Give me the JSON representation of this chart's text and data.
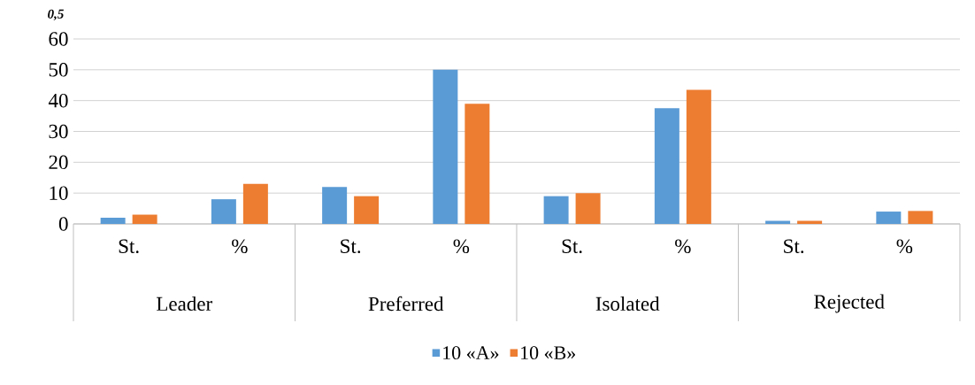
{
  "chart_data": {
    "type": "bar",
    "ylabel": "0,5",
    "categories": [
      "St.",
      "%",
      "St.",
      "%",
      "St.",
      "%",
      "St.",
      "%"
    ],
    "annotations": [
      "Leader",
      "Preferred",
      "Isolated",
      "Rejected"
    ],
    "series": [
      {
        "name": "10 «A»",
        "color": "#5b9bd5",
        "values": [
          2,
          8,
          12,
          50,
          9,
          37.5,
          1,
          4
        ]
      },
      {
        "name": "10 «B»",
        "color": "#ed7d31",
        "values": [
          3,
          13,
          9,
          39,
          10,
          43.5,
          1,
          4.2
        ]
      }
    ],
    "ylim": [
      0,
      60
    ],
    "yticks": [
      0,
      10,
      20,
      30,
      40,
      50,
      60
    ],
    "grid": "y",
    "legend": "bottom"
  }
}
